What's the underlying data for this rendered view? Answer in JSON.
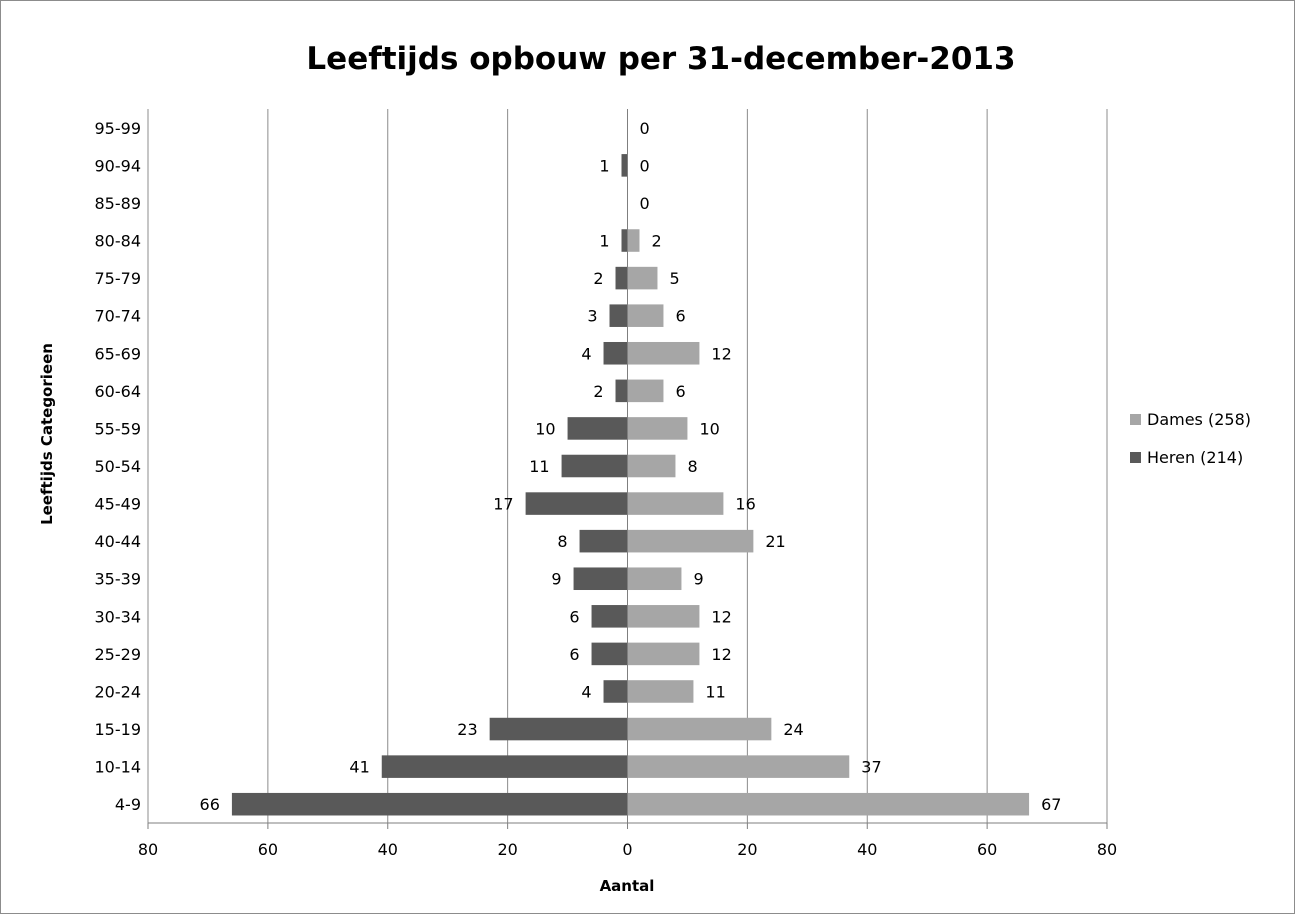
{
  "chart_data": {
    "type": "bar",
    "orientation": "horizontal-butterfly",
    "title": "Leeftijds opbouw per 31-december-2013",
    "xlabel": "Aantal",
    "ylabel": "Leeftijds Categorieen",
    "categories": [
      "4-9",
      "10-14",
      "15-19",
      "20-24",
      "25-29",
      "30-34",
      "35-39",
      "40-44",
      "45-49",
      "50-54",
      "55-59",
      "60-64",
      "65-69",
      "70-74",
      "75-79",
      "80-84",
      "85-89",
      "90-94",
      "95-99"
    ],
    "xlim": [
      -80,
      80
    ],
    "x_ticks": [
      -80,
      -60,
      -40,
      -20,
      0,
      20,
      40,
      60,
      80
    ],
    "x_tick_labels": [
      "80",
      "60",
      "40",
      "20",
      "0",
      "20",
      "40",
      "60",
      "80"
    ],
    "grid": "vertical",
    "legend_position": "right",
    "series": [
      {
        "name": "Dames (258)",
        "side": "right",
        "color": "#a6a6a6",
        "values": [
          67,
          37,
          24,
          11,
          12,
          12,
          9,
          21,
          16,
          8,
          10,
          6,
          12,
          6,
          5,
          2,
          0,
          0,
          0
        ],
        "labels": [
          "67",
          "37",
          "24",
          "11",
          "12",
          "12",
          "9",
          "21",
          "16",
          "8",
          "10",
          "6",
          "12",
          "6",
          "5",
          "2",
          "0",
          "0",
          "0"
        ]
      },
      {
        "name": "Heren (214)",
        "side": "left",
        "color": "#595959",
        "values": [
          66,
          41,
          23,
          4,
          6,
          6,
          9,
          8,
          17,
          11,
          10,
          2,
          4,
          3,
          2,
          1,
          null,
          1,
          null
        ],
        "labels": [
          "66",
          "41",
          "23",
          "4",
          "6",
          "6",
          "9",
          "8",
          "17",
          "11",
          "10",
          "2",
          "4",
          "3",
          "2",
          "1",
          "",
          "1",
          ""
        ]
      }
    ]
  }
}
